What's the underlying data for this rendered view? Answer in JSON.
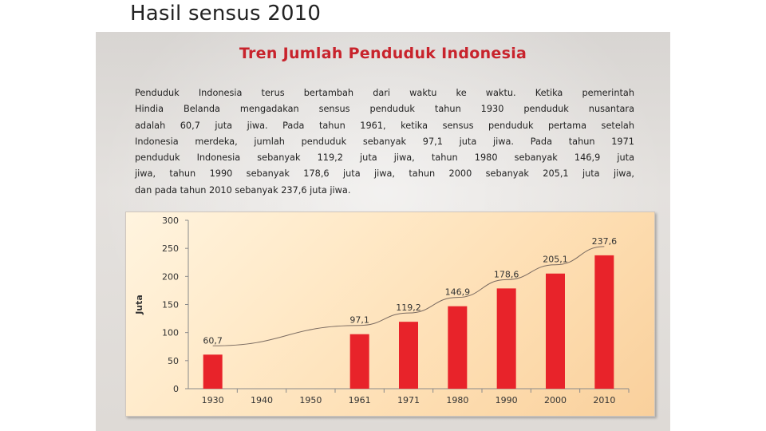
{
  "slide": {
    "title": "Hasil sensus 2010"
  },
  "panel": {
    "title": "Tren Jumlah Penduduk Indonesia",
    "paragraph_lines": [
      "Penduduk Indonesia terus bertambah dari waktu ke waktu. Ketika pemerintah",
      "Hindia Belanda mengadakan sensus penduduk tahun 1930 penduduk nusantara",
      "adalah 60,7 juta jiwa. Pada tahun 1961, ketika sensus penduduk pertama setelah",
      "Indonesia merdeka, jumlah penduduk sebanyak 97,1 juta jiwa. Pada tahun 1971",
      "penduduk Indonesia sebanyak 119,2 juta jiwa, tahun 1980 sebanyak 146,9 juta",
      "jiwa, tahun 1990 sebanyak 178,6 juta jiwa, tahun 2000 sebanyak 205,1 juta jiwa,",
      "dan pada tahun 2010 sebanyak 237,6 juta jiwa."
    ]
  },
  "chart_data": {
    "type": "bar",
    "categories": [
      "1930",
      "1940",
      "1950",
      "1961",
      "1971",
      "1980",
      "1990",
      "2000",
      "2010"
    ],
    "values": [
      60.7,
      null,
      null,
      97.1,
      119.2,
      146.9,
      178.6,
      205.1,
      237.6
    ],
    "data_labels": [
      "60,7",
      "",
      "",
      "97,1",
      "119,2",
      "146,9",
      "178,6",
      "205,1",
      "237,6"
    ],
    "ylabel": "Juta",
    "ylim": [
      0,
      300
    ],
    "yticks": [
      0,
      50,
      100,
      150,
      200,
      250,
      300
    ],
    "bar_color": "#e8232a",
    "trendline": true,
    "grid": false
  }
}
